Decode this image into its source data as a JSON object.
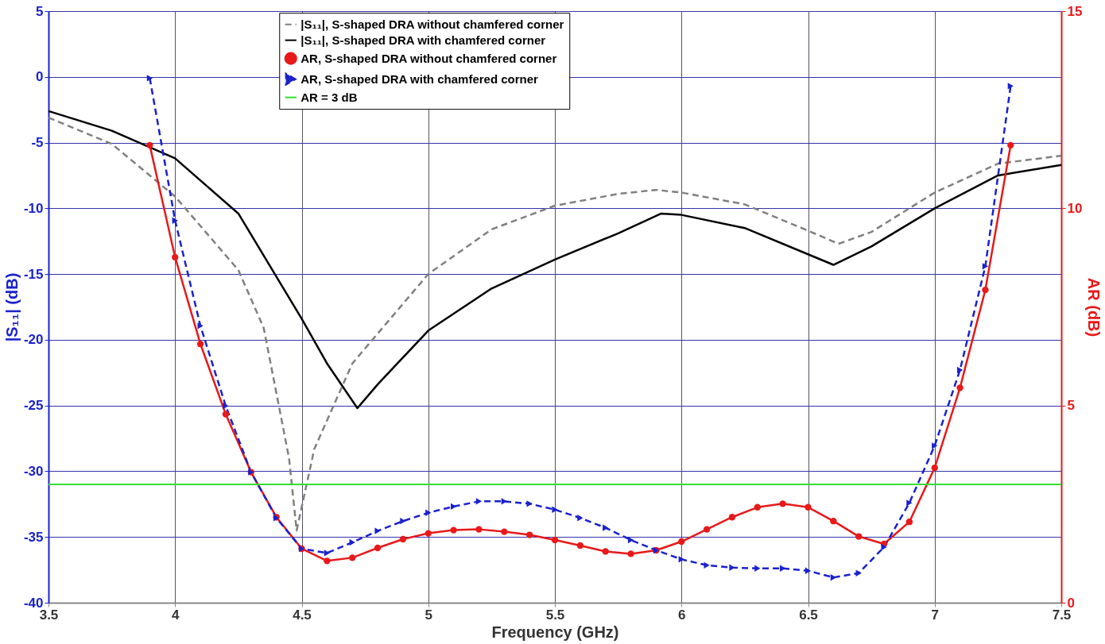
{
  "chart_data": {
    "type": "line",
    "xlabel": "Frequency (GHz)",
    "ylabel": "|S₁₁| (dB)",
    "y2label": "AR (dB)",
    "xlim": [
      3.5,
      7.5
    ],
    "xticks": [
      3.5,
      4,
      4.5,
      5,
      5.5,
      6,
      6.5,
      7,
      7.5
    ],
    "ylim": [
      -40,
      5
    ],
    "yticks": [
      -40,
      -35,
      -30,
      -25,
      -20,
      -15,
      -10,
      -5,
      0,
      5
    ],
    "y2lim": [
      0,
      15
    ],
    "y2ticks": [
      0,
      5,
      10,
      15
    ],
    "grid": true,
    "legend": "top",
    "series": [
      {
        "name": "|S₁₁|, S-shaped DRA without chamfered corner",
        "color": "#808080",
        "line_style": "dashed",
        "marker": "none",
        "x": [
          3.5,
          3.75,
          4.0,
          4.25,
          4.35,
          4.45,
          4.48,
          4.55,
          4.7,
          5.0,
          5.25,
          5.5,
          5.75,
          5.9,
          6.0,
          6.25,
          6.5,
          6.62,
          6.75,
          7.0,
          7.25,
          7.5
        ],
        "values": [
          -3.1,
          -5.1,
          -9.1,
          -14.7,
          -19.1,
          -29.0,
          -34.5,
          -28.3,
          -21.8,
          -15.0,
          -11.6,
          -9.8,
          -8.9,
          -8.6,
          -8.8,
          -9.7,
          -11.7,
          -12.7,
          -11.8,
          -8.8,
          -6.6,
          -6.0
        ]
      },
      {
        "name": "|S₁₁|, S-shaped DRA with chamfered corner",
        "color": "#000000",
        "line_style": "solid",
        "marker": "none",
        "x": [
          3.5,
          3.75,
          4.0,
          4.25,
          4.5,
          4.6,
          4.72,
          4.8,
          5.0,
          5.25,
          5.5,
          5.75,
          5.92,
          6.0,
          6.25,
          6.5,
          6.6,
          6.75,
          7.0,
          7.25,
          7.5
        ],
        "values": [
          -2.6,
          -4.1,
          -6.2,
          -10.4,
          -18.4,
          -21.8,
          -25.2,
          -23.4,
          -19.3,
          -16.1,
          -13.9,
          -11.9,
          -10.4,
          -10.5,
          -11.5,
          -13.5,
          -14.3,
          -12.9,
          -10.0,
          -7.5,
          -6.7
        ]
      },
      {
        "name": "AR, S-shaped DRA without chamfered corner",
        "color": "#e8191a",
        "line_style": "solid",
        "marker": "circle",
        "axis": "y2",
        "x": [
          3.9,
          4.0,
          4.1,
          4.2,
          4.3,
          4.4,
          4.5,
          4.6,
          4.7,
          4.8,
          4.9,
          5.0,
          5.1,
          5.2,
          5.3,
          5.4,
          5.5,
          5.6,
          5.7,
          5.8,
          5.9,
          6.0,
          6.1,
          6.2,
          6.3,
          6.4,
          6.5,
          6.6,
          6.7,
          6.8,
          6.9,
          7.0,
          7.1,
          7.2,
          7.3
        ],
        "values": [
          11.6,
          8.76,
          6.56,
          4.78,
          3.31,
          2.17,
          1.37,
          1.06,
          1.14,
          1.39,
          1.61,
          1.76,
          1.84,
          1.86,
          1.8,
          1.72,
          1.59,
          1.45,
          1.3,
          1.24,
          1.33,
          1.55,
          1.86,
          2.17,
          2.42,
          2.51,
          2.42,
          2.07,
          1.68,
          1.49,
          2.05,
          3.42,
          5.45,
          7.93,
          11.6
        ]
      },
      {
        "name": "AR, S-shaped DRA with chamfered corner",
        "color": "#1a22cc",
        "line_style": "dashed",
        "marker": "triangle",
        "axis": "y2",
        "x": [
          3.9,
          4.0,
          4.1,
          4.2,
          4.3,
          4.4,
          4.5,
          4.6,
          4.7,
          4.8,
          4.9,
          5.0,
          5.1,
          5.2,
          5.3,
          5.4,
          5.5,
          5.6,
          5.7,
          5.8,
          5.9,
          6.0,
          6.1,
          6.2,
          6.3,
          6.4,
          6.5,
          6.6,
          6.7,
          6.8,
          6.9,
          7.0,
          7.1,
          7.2,
          7.3
        ],
        "values": [
          13.3,
          9.69,
          7.02,
          4.99,
          3.31,
          2.15,
          1.37,
          1.26,
          1.53,
          1.82,
          2.07,
          2.28,
          2.44,
          2.57,
          2.57,
          2.51,
          2.36,
          2.15,
          1.9,
          1.59,
          1.33,
          1.1,
          0.95,
          0.89,
          0.87,
          0.87,
          0.81,
          0.64,
          0.75,
          1.41,
          2.53,
          3.98,
          5.9,
          8.53,
          13.1
        ]
      }
    ],
    "ref_lines": [
      {
        "axis": "y2",
        "value": 3,
        "label": "AR = 3 dB",
        "color": "#33dd33",
        "line_style": "solid"
      }
    ]
  }
}
